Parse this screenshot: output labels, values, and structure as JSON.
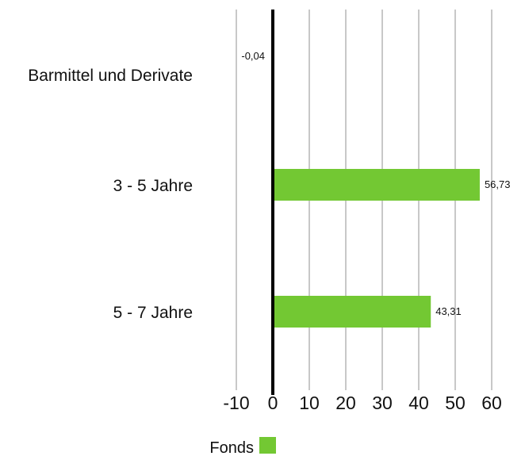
{
  "chart_data": {
    "type": "bar",
    "orientation": "horizontal",
    "categories": [
      "Barmittel und Derivate",
      "3 - 5 Jahre",
      "5 - 7 Jahre"
    ],
    "series": [
      {
        "name": "Fonds",
        "values": [
          -0.04,
          56.73,
          43.31
        ],
        "value_labels": [
          "-0,04",
          "56,73",
          "43,31"
        ],
        "color": "#73c833"
      }
    ],
    "xlim": [
      -10,
      60
    ],
    "xticks": [
      -10,
      0,
      10,
      20,
      30,
      40,
      50,
      60
    ],
    "xtick_labels": [
      "-10",
      "0",
      "10",
      "20",
      "30",
      "40",
      "50",
      "60"
    ],
    "grid": true,
    "grid_color": "#c8c8c8",
    "zero_line_color": "#000000",
    "legend_position": "bottom-left",
    "title": "",
    "xlabel": "",
    "ylabel": ""
  }
}
